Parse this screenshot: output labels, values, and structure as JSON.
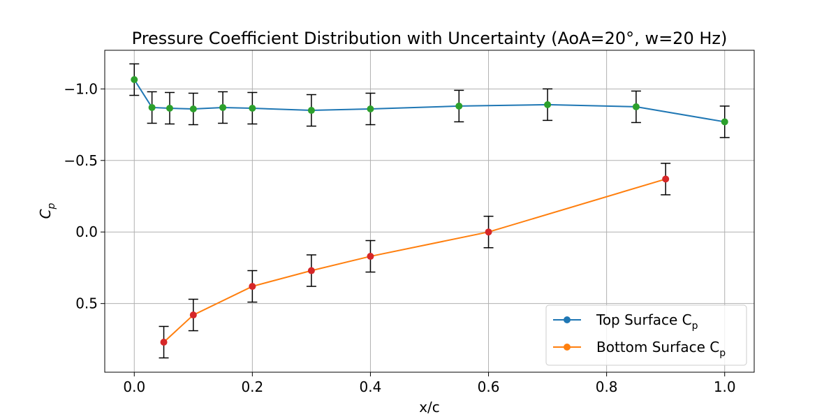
{
  "chart_data": {
    "type": "line",
    "title": "Pressure Coefficient Distribution with Uncertainty (AoA=20°, w=20 Hz)",
    "xlabel": "x/c",
    "ylabel": "C",
    "ylabel_sub": "p",
    "xlim": [
      -0.05,
      1.05
    ],
    "ylim": [
      0.98,
      -1.27
    ],
    "y_inverted": true,
    "grid": true,
    "legend_position": "lower right",
    "xticks": [
      0.0,
      0.2,
      0.4,
      0.6,
      0.8,
      1.0
    ],
    "xtick_labels": [
      "0.0",
      "0.2",
      "0.4",
      "0.6",
      "0.8",
      "1.0"
    ],
    "yticks": [
      -1.0,
      -0.5,
      0.0,
      0.5
    ],
    "ytick_labels": [
      "−1.0",
      "−0.5",
      "0.0",
      "0.5"
    ],
    "series": [
      {
        "name": "Top Surface C",
        "name_sub": "p",
        "line_color": "#1f77b4",
        "marker_color": "#2ca02c",
        "x": [
          0.0,
          0.03,
          0.06,
          0.1,
          0.15,
          0.2,
          0.3,
          0.4,
          0.55,
          0.7,
          0.85,
          1.0
        ],
        "y": [
          -1.065,
          -0.87,
          -0.865,
          -0.86,
          -0.87,
          -0.865,
          -0.85,
          -0.86,
          -0.88,
          -0.89,
          -0.875,
          -0.77
        ],
        "error": [
          0.11,
          0.11,
          0.11,
          0.11,
          0.11,
          0.11,
          0.11,
          0.11,
          0.11,
          0.11,
          0.11,
          0.11
        ]
      },
      {
        "name": "Bottom Surface C",
        "name_sub": "p",
        "line_color": "#ff7f0e",
        "marker_color": "#d62728",
        "x": [
          0.05,
          0.1,
          0.2,
          0.3,
          0.4,
          0.6,
          0.9
        ],
        "y": [
          0.77,
          0.58,
          0.38,
          0.27,
          0.17,
          0.0,
          -0.37
        ],
        "error": [
          0.11,
          0.11,
          0.11,
          0.11,
          0.11,
          0.11,
          0.11
        ]
      }
    ]
  }
}
